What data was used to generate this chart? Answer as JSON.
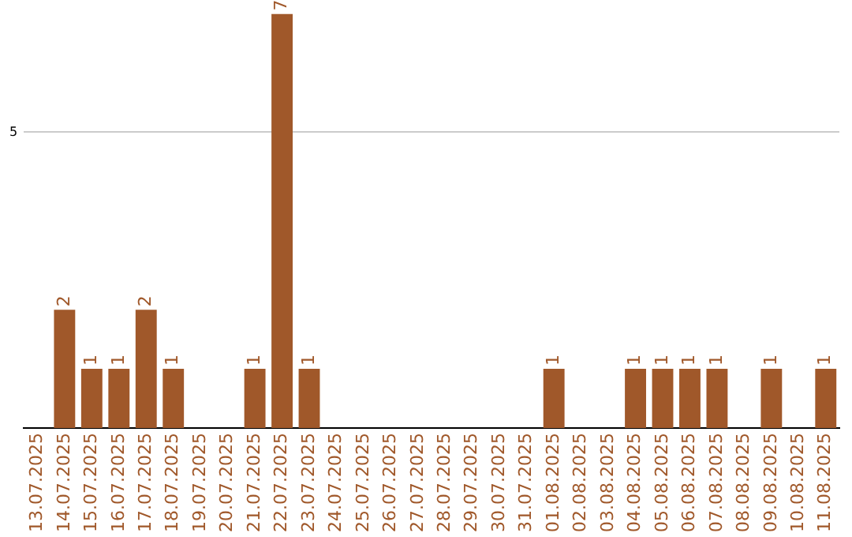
{
  "chart_data": {
    "type": "bar",
    "categories": [
      "13.07.2025",
      "14.07.2025",
      "15.07.2025",
      "16.07.2025",
      "17.07.2025",
      "18.07.2025",
      "19.07.2025",
      "20.07.2025",
      "21.07.2025",
      "22.07.2025",
      "23.07.2025",
      "24.07.2025",
      "25.07.2025",
      "26.07.2025",
      "27.07.2025",
      "28.07.2025",
      "29.07.2025",
      "30.07.2025",
      "31.07.2025",
      "01.08.2025",
      "02.08.2025",
      "03.08.2025",
      "04.08.2025",
      "05.08.2025",
      "06.08.2025",
      "07.08.2025",
      "08.08.2025",
      "09.08.2025",
      "10.08.2025",
      "11.08.2025"
    ],
    "values": [
      null,
      2,
      1,
      1,
      2,
      1,
      null,
      null,
      1,
      7,
      1,
      null,
      null,
      null,
      null,
      null,
      null,
      null,
      null,
      1,
      null,
      null,
      1,
      1,
      1,
      1,
      null,
      1,
      null,
      1
    ],
    "color": "#a0582a",
    "ylim": [
      0,
      7
    ],
    "yticks": [
      5
    ],
    "grid": "y",
    "data_labels": true,
    "legend": false
  }
}
